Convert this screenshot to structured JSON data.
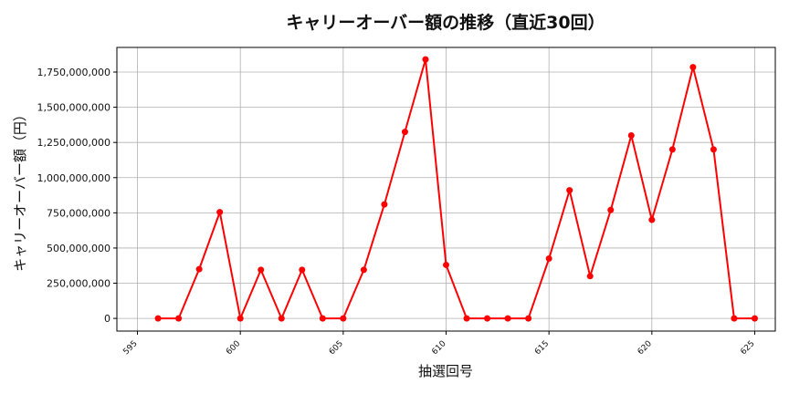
{
  "chart_data": {
    "type": "line",
    "title": "キャリーオーバー額の推移（直近30回）",
    "xlabel": "抽選回号",
    "ylabel": "キャリーオーバー額（円）",
    "xlim": [
      594,
      626
    ],
    "ylim": [
      -90000000,
      1925000000
    ],
    "x_ticks": [
      595,
      600,
      605,
      610,
      615,
      620,
      625
    ],
    "y_ticks": [
      0,
      250000000,
      500000000,
      750000000,
      1000000000,
      1250000000,
      1500000000,
      1750000000
    ],
    "y_tick_labels": [
      "0",
      "250,000,000",
      "500,000,000",
      "750,000,000",
      "1,000,000,000",
      "1,250,000,000",
      "1,500,000,000",
      "1,750,000,000"
    ],
    "grid": true,
    "color": "#ff0000",
    "x": [
      596,
      597,
      598,
      599,
      600,
      601,
      602,
      603,
      604,
      605,
      606,
      607,
      608,
      609,
      610,
      611,
      612,
      613,
      614,
      615,
      616,
      617,
      618,
      619,
      620,
      621,
      622,
      623,
      624,
      625
    ],
    "y": [
      0,
      0,
      350000000,
      755000000,
      0,
      345000000,
      0,
      345000000,
      0,
      0,
      345000000,
      810000000,
      1325000000,
      1840000000,
      380000000,
      0,
      0,
      0,
      0,
      425000000,
      910000000,
      300000000,
      770000000,
      1300000000,
      700000000,
      1200000000,
      1785000000,
      1200000000,
      0,
      0
    ]
  }
}
